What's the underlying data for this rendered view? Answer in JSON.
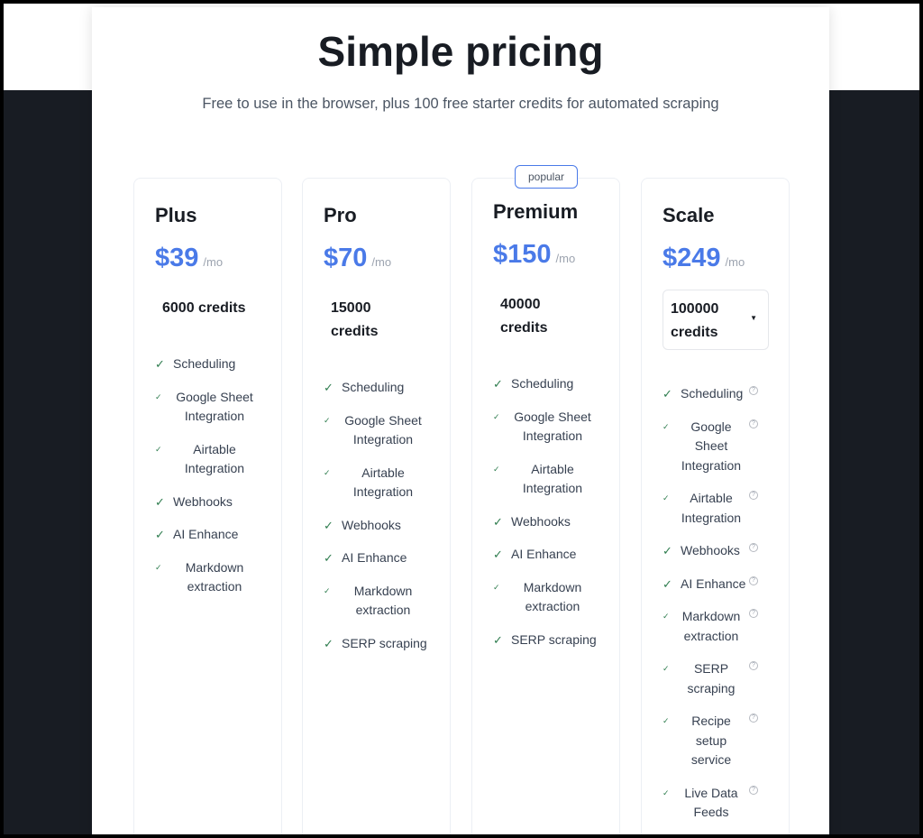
{
  "header": {
    "title": "Simple pricing",
    "subtitle": "Free to use in the browser, plus 100 free starter credits for automated scraping"
  },
  "colors": {
    "accent": "#4a7ae8",
    "check": "#2f7d4f",
    "background_dark": "#181c23"
  },
  "plans": [
    {
      "name": "Plus",
      "price": "$39",
      "period": "/mo",
      "credits": "6000 credits",
      "features": [
        "Scheduling",
        "Google Sheet Integration",
        "Airtable Integration",
        "Webhooks",
        "AI Enhance",
        "Markdown extraction"
      ]
    },
    {
      "name": "Pro",
      "price": "$70",
      "period": "/mo",
      "credits": "15000 credits",
      "features": [
        "Scheduling",
        "Google Sheet Integration",
        "Airtable Integration",
        "Webhooks",
        "AI Enhance",
        "Markdown extraction",
        "SERP scraping"
      ]
    },
    {
      "name": "Premium",
      "badge": "popular",
      "price": "$150",
      "period": "/mo",
      "credits": "40000 credits",
      "features": [
        "Scheduling",
        "Google Sheet Integration",
        "Airtable Integration",
        "Webhooks",
        "AI Enhance",
        "Markdown extraction",
        "SERP scraping"
      ]
    },
    {
      "name": "Scale",
      "price": "$249",
      "period": "/mo",
      "credits": "100000 credits",
      "features": [
        "Scheduling",
        "Google Sheet Integration",
        "Airtable Integration",
        "Webhooks",
        "AI Enhance",
        "Markdown extraction",
        "SERP scraping",
        "Recipe setup service",
        "Live Data Feeds"
      ]
    }
  ],
  "icons": {
    "check": "check-icon",
    "help": "question-circle-icon",
    "caret": "caret-down-icon"
  }
}
